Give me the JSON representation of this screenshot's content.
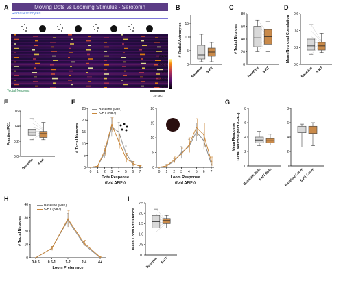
{
  "panel_labels": [
    "A",
    "B",
    "C",
    "D",
    "E",
    "F",
    "G",
    "H",
    "I"
  ],
  "panel_a": {
    "title": "Moving Dots vs Looming Stimulus - Serotonin",
    "top_label": "Radial Astrocytes",
    "bottom_label": "Tectal Neurons",
    "colorbar_ticks": [
      "400%",
      "300%",
      "200%",
      "100%"
    ],
    "colorbar_unit": "ΔF/F",
    "scalebar_label": "20 sec",
    "colors": {
      "title_bg": "#5c3d86",
      "title_text": "#e8e0f5",
      "top_label": "#4d7ee8",
      "bottom_label": "#2e8b57"
    }
  },
  "colors": {
    "baseline": "#d9d9d9",
    "serotonin": "#c98a4a",
    "baseline_line": "#8c8c8c",
    "serotonin_line": "#c9883d"
  },
  "chart_data": [
    {
      "panel": "B",
      "type": "box",
      "categories": [
        "Baseline",
        "5-HT"
      ],
      "ylabel": "# Radial Astrocytes",
      "ylim": [
        0,
        18
      ],
      "yticks": [
        0,
        5,
        10,
        15
      ],
      "boxes": [
        {
          "min": 1,
          "q1": 2,
          "median": 3.5,
          "q3": 7,
          "max": 11
        },
        {
          "min": 1,
          "q1": 3,
          "median": 4.5,
          "q3": 6,
          "max": 8
        }
      ]
    },
    {
      "panel": "C",
      "type": "box",
      "categories": [
        "Baseline",
        "5-HT"
      ],
      "ylabel": "# Tectal Neurons",
      "ylim": [
        0,
        80
      ],
      "yticks": [
        0,
        20,
        40,
        60,
        80
      ],
      "boxes": [
        {
          "min": 20,
          "q1": 28,
          "median": 42,
          "q3": 60,
          "max": 70
        },
        {
          "min": 20,
          "q1": 32,
          "median": 44,
          "q3": 55,
          "max": 68
        }
      ]
    },
    {
      "panel": "D",
      "type": "box",
      "categories": [
        "Baseline",
        "5-HT"
      ],
      "ylabel": "Mean Neuronal Correlation",
      "ylim": [
        0,
        0.6
      ],
      "yticks": [
        0.0,
        0.2,
        0.4,
        0.6
      ],
      "boxes": [
        {
          "min": 0.12,
          "q1": 0.17,
          "median": 0.22,
          "q3": 0.3,
          "max": 0.47
        },
        {
          "min": 0.14,
          "q1": 0.17,
          "median": 0.22,
          "q3": 0.26,
          "max": 0.37
        }
      ]
    },
    {
      "panel": "E",
      "type": "box",
      "categories": [
        "Baseline",
        "5-HT"
      ],
      "ylabel": "Fraction PC1",
      "ylim": [
        0,
        0.6
      ],
      "yticks": [
        0.0,
        0.2,
        0.4,
        0.6
      ],
      "boxes": [
        {
          "min": 0.22,
          "q1": 0.28,
          "median": 0.32,
          "q3": 0.36,
          "max": 0.5
        },
        {
          "min": 0.22,
          "q1": 0.25,
          "median": 0.3,
          "q3": 0.33,
          "max": 0.45
        }
      ]
    },
    {
      "panel": "F1",
      "type": "line",
      "xlabel": "Dots Response",
      "xlabel2": "(fold ΔF/F₀)",
      "ylabel": "# Tectal Neurons",
      "ylim": [
        0,
        25
      ],
      "yticks": [
        0,
        5,
        10,
        15,
        20,
        25
      ],
      "x": [
        0,
        1,
        2,
        3,
        4,
        5,
        6,
        7
      ],
      "series": [
        {
          "name": "Baseline (N=7)",
          "values": [
            0,
            0.5,
            6,
            17,
            15,
            6,
            1.5,
            0.5
          ],
          "err": [
            0,
            0.5,
            2,
            4,
            4,
            3,
            1,
            0.3
          ]
        },
        {
          "name": "5-HT (N=7)",
          "values": [
            0,
            0.5,
            7,
            18,
            11,
            4,
            1.5,
            0.5
          ],
          "err": [
            0,
            0.5,
            2,
            3,
            3,
            2,
            1,
            0.3
          ]
        }
      ]
    },
    {
      "panel": "F2",
      "type": "line",
      "xlabel": "Loom Response",
      "xlabel2": "(fold ΔF/F₀)",
      "ylim": [
        0,
        20
      ],
      "yticks": [
        0,
        5,
        10,
        15,
        20
      ],
      "x": [
        0,
        1,
        2,
        3,
        4,
        5,
        6,
        7
      ],
      "series": [
        {
          "name": "Baseline",
          "values": [
            0,
            0.5,
            2,
            5,
            7,
            12,
            9,
            1
          ],
          "err": [
            0,
            0.5,
            1,
            2,
            2.5,
            3,
            3,
            1
          ]
        },
        {
          "name": "5-HT",
          "values": [
            0,
            0.5,
            2.5,
            4.5,
            7.5,
            13.5,
            11,
            2
          ],
          "err": [
            0,
            0.5,
            1,
            2,
            2.5,
            3,
            4,
            1.5
          ]
        }
      ]
    },
    {
      "panel": "G",
      "type": "box",
      "categories": [
        "Baseline Dots",
        "5-HT Dots",
        "Baseline Loom",
        "5-HT Loom"
      ],
      "ylabel": "Mean Response",
      "ylabel2": "Tectal Neurons (fold ΔF/F₀)",
      "ylim": [
        0,
        8
      ],
      "yticks": [
        0,
        2,
        4,
        6,
        8
      ],
      "boxes": [
        {
          "min": 2.8,
          "q1": 3.2,
          "median": 3.6,
          "q3": 4,
          "max": 4.8
        },
        {
          "min": 2.9,
          "q1": 3.2,
          "median": 3.5,
          "q3": 3.8,
          "max": 4.4
        },
        {
          "min": 2.6,
          "q1": 4.6,
          "median": 5.0,
          "q3": 5.5,
          "max": 5.8
        },
        {
          "min": 2.8,
          "q1": 4.5,
          "median": 5.0,
          "q3": 5.5,
          "max": 6.0
        }
      ]
    },
    {
      "panel": "H",
      "type": "line",
      "xlabel": "Loom Preference",
      "ylabel": "# Tectal Neurons",
      "ylim": [
        0,
        40
      ],
      "yticks": [
        0,
        10,
        20,
        30,
        40
      ],
      "categories": [
        "0-0.5",
        "0.5-1",
        "1-2",
        "2-4",
        "4+"
      ],
      "series": [
        {
          "name": "Baseline (N=7)",
          "values": [
            0,
            7,
            28,
            10,
            0
          ],
          "err": [
            0,
            1.5,
            5,
            2,
            0
          ]
        },
        {
          "name": "5-HT (N=7)",
          "values": [
            0,
            7,
            29,
            11,
            0.5
          ],
          "err": [
            0,
            1.5,
            6,
            2,
            0.5
          ]
        }
      ]
    },
    {
      "panel": "I",
      "type": "box",
      "categories": [
        "Baseline",
        "5-HT"
      ],
      "ylabel": "Mean Loom Preference",
      "ylim": [
        0,
        2.5
      ],
      "yticks": [
        0.0,
        0.5,
        1.0,
        1.5,
        2.0,
        2.5
      ],
      "boxes": [
        {
          "min": 1.1,
          "q1": 1.3,
          "median": 1.6,
          "q3": 1.9,
          "max": 2.2
        },
        {
          "min": 1.3,
          "q1": 1.5,
          "median": 1.65,
          "q3": 1.75,
          "max": 1.9
        }
      ]
    }
  ]
}
